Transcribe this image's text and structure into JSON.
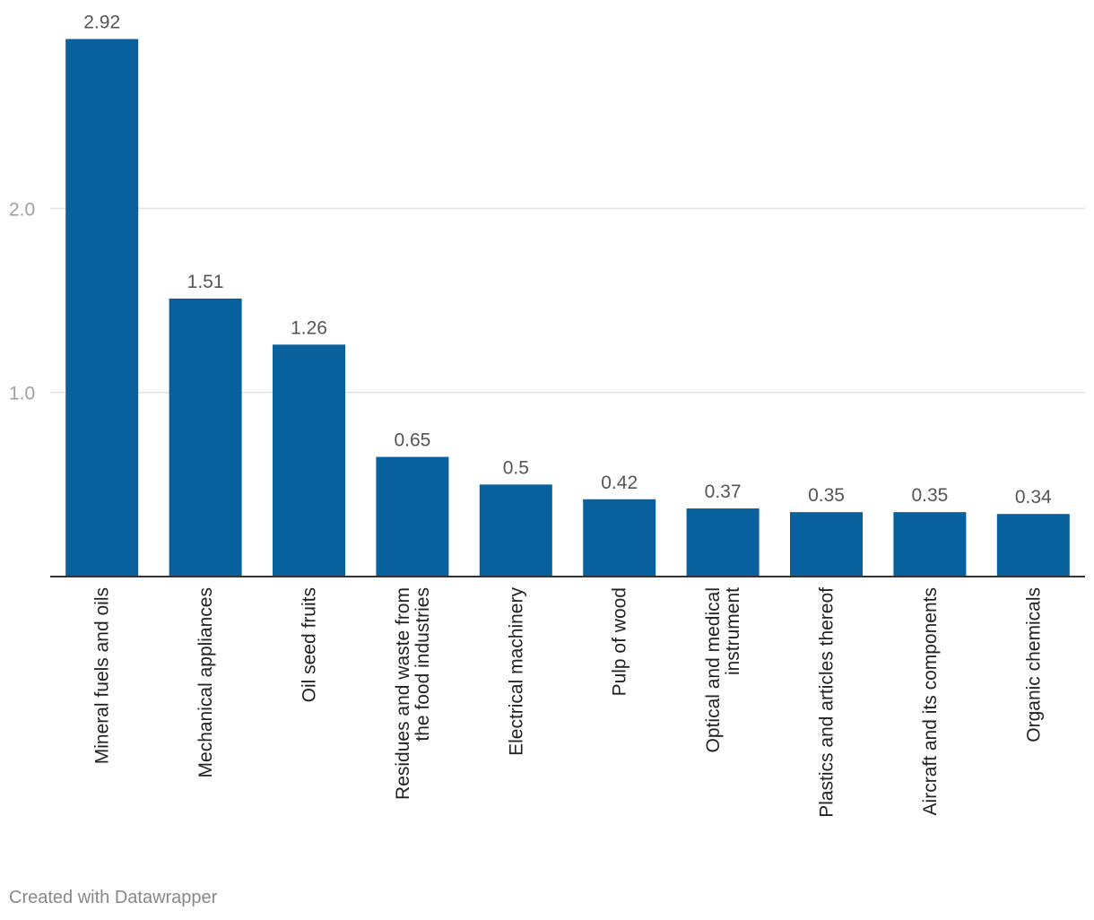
{
  "chart_data": {
    "type": "bar",
    "title": "",
    "xlabel": "",
    "ylabel": "",
    "categories": [
      [
        "Mineral fuels and oils"
      ],
      [
        "Mechanical appliances"
      ],
      [
        "Oil seed fruits"
      ],
      [
        "Residues and waste from",
        "the food industries"
      ],
      [
        "Electrical machinery"
      ],
      [
        "Pulp of wood"
      ],
      [
        "Optical and medical",
        "instrument"
      ],
      [
        "Plastics and articles thereof"
      ],
      [
        "Aircraft and its components"
      ],
      [
        "Organic chemicals"
      ]
    ],
    "values": [
      2.92,
      1.51,
      1.26,
      0.65,
      0.5,
      0.42,
      0.37,
      0.35,
      0.35,
      0.34
    ],
    "value_labels": [
      "2.92",
      "1.51",
      "1.26",
      "0.65",
      "0.5",
      "0.42",
      "0.37",
      "0.35",
      "0.35",
      "0.34"
    ],
    "ylim": [
      0,
      3
    ],
    "yticks": [
      1.0,
      2.0
    ],
    "ytick_labels": [
      "1.0",
      "2.0"
    ],
    "grid": true,
    "colors": {
      "bar": "#08609c",
      "grid": "#e2e2e2",
      "axis": "#333333",
      "tick_text": "#a0a0a0",
      "value_text": "#555555",
      "category_text": "#222222"
    }
  },
  "footer": {
    "credit": "Created with Datawrapper"
  }
}
